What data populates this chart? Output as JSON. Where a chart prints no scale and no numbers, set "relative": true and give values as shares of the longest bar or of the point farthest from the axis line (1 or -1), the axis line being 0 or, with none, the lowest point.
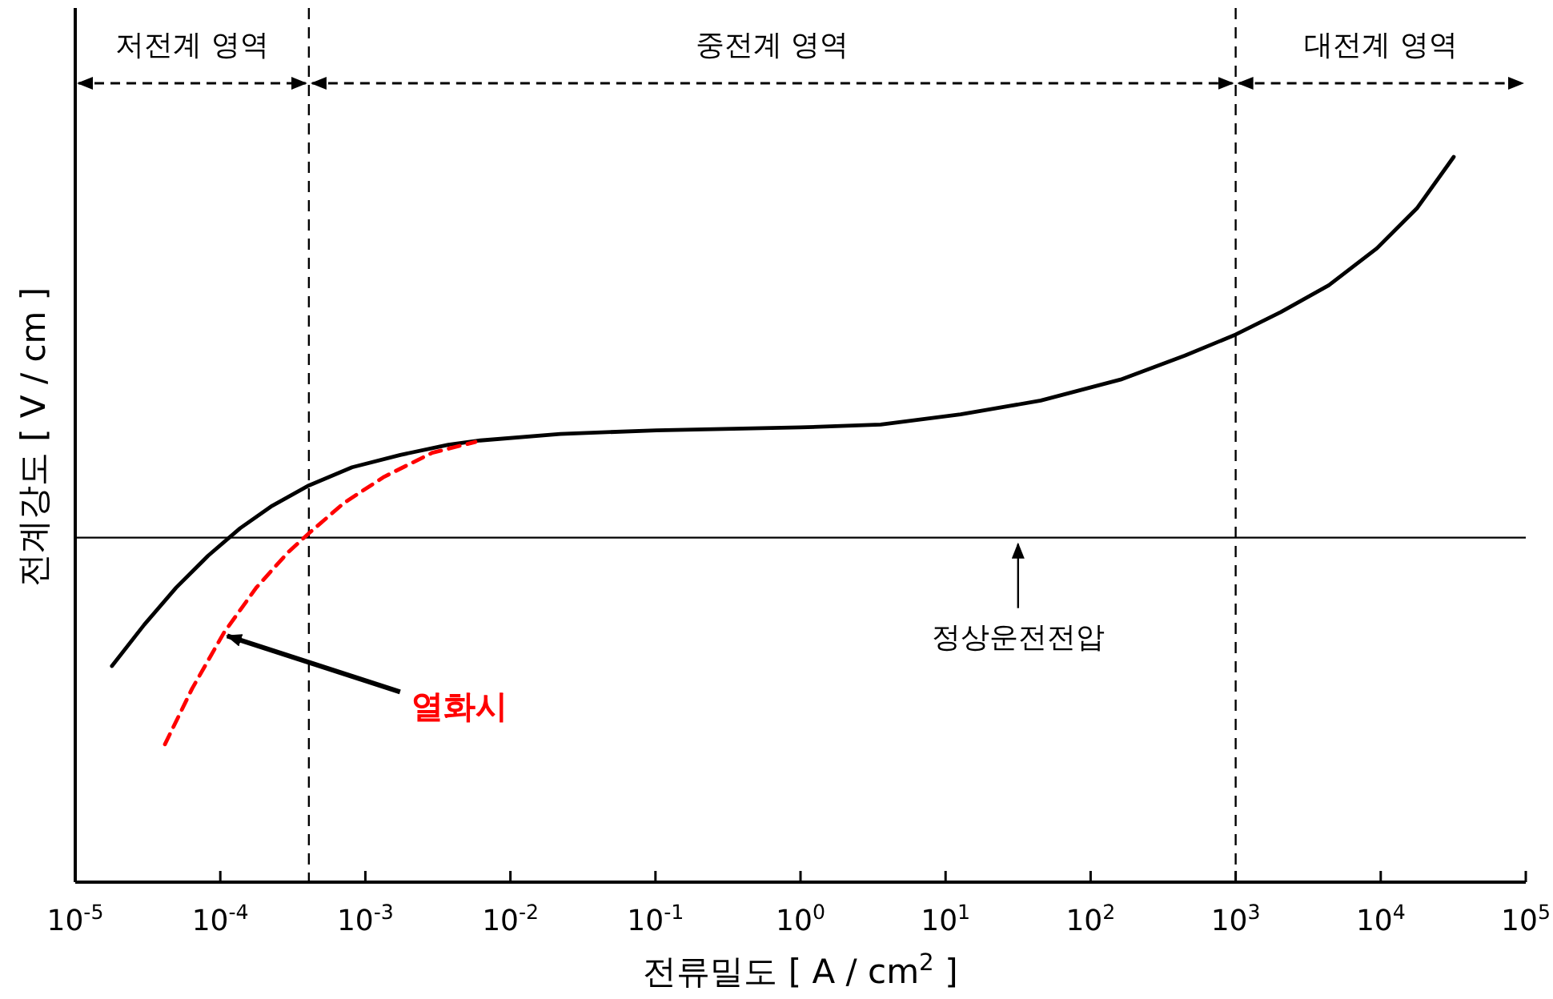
{
  "chart_data": {
    "type": "line",
    "relative": true,
    "log": "x",
    "xlabel": "전류밀도 [ A / cm$^{2}$ ]",
    "ylabel": "전계강도 [ V / cm ]",
    "xlim": [
      1e-05,
      100000.0
    ],
    "xticks": [
      {
        "value": 1e-05,
        "label": "10$^{-5}$"
      },
      {
        "value": 0.0001,
        "label": "10$^{-4}$"
      },
      {
        "value": 0.001,
        "label": "10$^{-3}$"
      },
      {
        "value": 0.01,
        "label": "10$^{-2}$"
      },
      {
        "value": 0.1,
        "label": "10$^{-1}$"
      },
      {
        "value": 1,
        "label": "10$^{0}$"
      },
      {
        "value": 10,
        "label": "10$^{1}$"
      },
      {
        "value": 100,
        "label": "10$^{2}$"
      },
      {
        "value": 1000,
        "label": "10$^{3}$"
      },
      {
        "value": 10000,
        "label": "10$^{4}$"
      },
      {
        "value": 100000,
        "label": "10$^{5}$"
      }
    ],
    "series": [
      {
        "color": "#000000",
        "line_style": "solid",
        "x": [
          1.79e-05,
          2.99e-05,
          4.96e-05,
          8.24e-05,
          0.000137,
          0.000228,
          0.000408,
          0.00081,
          0.00174,
          0.00373,
          0.0062,
          0.0221,
          0.1016,
          1,
          3.57,
          12.7,
          45.3,
          161,
          446,
          1000,
          2046,
          4385,
          9420,
          17750,
          31860
        ],
        "values": [
          0.298,
          0.355,
          0.406,
          0.45,
          0.488,
          0.519,
          0.547,
          0.572,
          0.589,
          0.603,
          0.609,
          0.618,
          0.623,
          0.627,
          0.631,
          0.645,
          0.664,
          0.693,
          0.726,
          0.755,
          0.786,
          0.823,
          0.874,
          0.929,
          1
        ]
      },
      {
        "color": "#ff0000",
        "line_style": "dashed",
        "x": [
          4.15e-05,
          6.4e-05,
          0.000106,
          0.000177,
          0.000294,
          0.000408,
          0.000714,
          0.00135,
          0.00289,
          0.00574
        ],
        "values": [
          0.19,
          0.267,
          0.344,
          0.406,
          0.455,
          0.481,
          0.523,
          0.559,
          0.592,
          0.607
        ]
      }
    ],
    "ref_lines": [
      {
        "axis": "x",
        "value": 0.000408,
        "line_style": "dashed"
      },
      {
        "axis": "x",
        "value": 1000,
        "line_style": "dashed"
      },
      {
        "axis": "y",
        "value": 0.475,
        "line_style": "solid",
        "label": "정상운전전압"
      }
    ],
    "annotations": [
      "저전계 영역",
      "중전계 영역",
      "대전계 영역",
      {
        "text": "**열화시**",
        "x": 0.000106,
        "y": 0.344
      }
    ]
  }
}
